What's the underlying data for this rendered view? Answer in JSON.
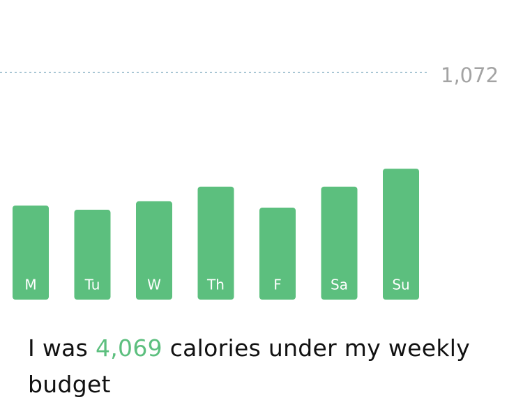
{
  "chart_data": {
    "type": "bar",
    "categories": [
      "M",
      "Tu",
      "W",
      "Th",
      "F",
      "Sa",
      "Su"
    ],
    "values": [
      444,
      424,
      464,
      533,
      434,
      533,
      618
    ],
    "color": "#5cbf7e",
    "ylim": [
      0,
      1072
    ],
    "reference_line": {
      "value": 1072,
      "label": "1,072"
    }
  },
  "caption": {
    "prefix": "I was",
    "highlight": "4,069",
    "suffix": "calories under my weekly budget"
  }
}
